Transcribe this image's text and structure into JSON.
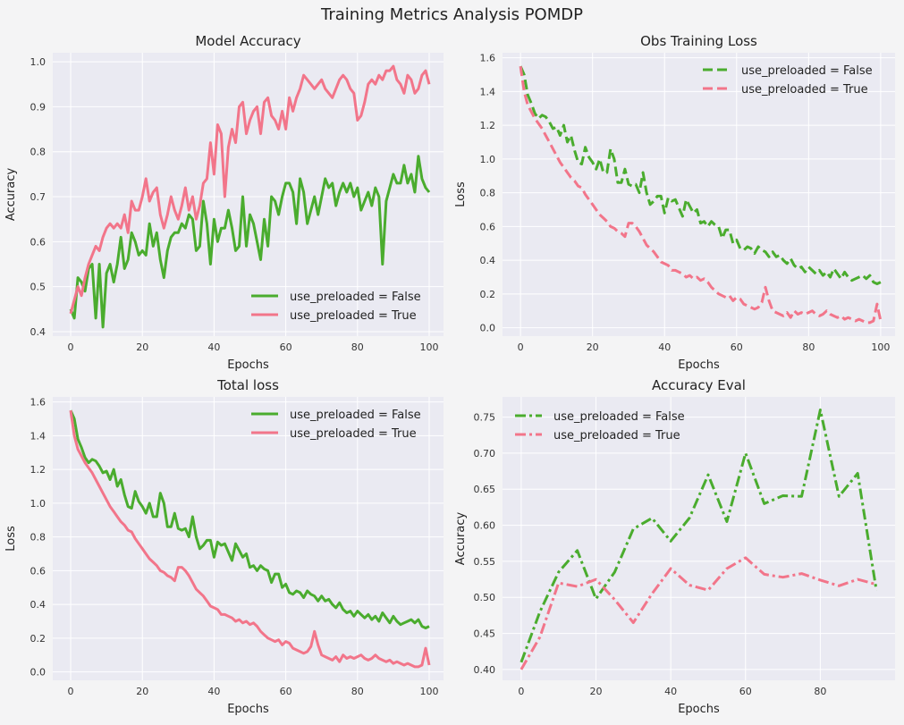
{
  "suptitle": "Training Metrics Analysis POMDP",
  "colors": {
    "false": "#4aac2e",
    "true": "#f2758a",
    "bg": "#eaeaf2",
    "grid": "#ffffff"
  },
  "chart_data": [
    {
      "id": "acc",
      "type": "line",
      "title": "Model Accuracy",
      "xlabel": "Epochs",
      "ylabel": "Accuracy",
      "xlim": [
        -5,
        104
      ],
      "ylim": [
        0.39,
        1.02
      ],
      "xticks": [
        0,
        20,
        40,
        60,
        80,
        100
      ],
      "yticks": [
        0.4,
        0.5,
        0.6,
        0.7,
        0.8,
        0.9,
        1.0
      ],
      "legend": "lower-right",
      "linestyle": "solid",
      "series": [
        {
          "name": "use_preloaded = False",
          "color": "#4aac2e",
          "y": [
            0.45,
            0.43,
            0.52,
            0.51,
            0.49,
            0.54,
            0.55,
            0.43,
            0.55,
            0.41,
            0.53,
            0.55,
            0.51,
            0.55,
            0.61,
            0.54,
            0.56,
            0.62,
            0.6,
            0.57,
            0.58,
            0.57,
            0.64,
            0.59,
            0.62,
            0.56,
            0.52,
            0.58,
            0.61,
            0.62,
            0.62,
            0.64,
            0.63,
            0.66,
            0.65,
            0.58,
            0.59,
            0.69,
            0.64,
            0.55,
            0.65,
            0.6,
            0.63,
            0.63,
            0.67,
            0.63,
            0.58,
            0.59,
            0.7,
            0.59,
            0.66,
            0.64,
            0.6,
            0.56,
            0.65,
            0.59,
            0.7,
            0.69,
            0.66,
            0.7,
            0.73,
            0.73,
            0.71,
            0.64,
            0.74,
            0.71,
            0.64,
            0.67,
            0.7,
            0.66,
            0.7,
            0.74,
            0.72,
            0.73,
            0.68,
            0.71,
            0.73,
            0.71,
            0.73,
            0.7,
            0.72,
            0.67,
            0.69,
            0.71,
            0.68,
            0.72,
            0.7,
            0.55,
            0.69,
            0.72,
            0.75,
            0.73,
            0.73,
            0.77,
            0.73,
            0.75,
            0.71,
            0.79,
            0.74,
            0.72,
            0.71
          ]
        },
        {
          "name": "use_preloaded = True",
          "color": "#f2758a",
          "y": [
            0.44,
            0.47,
            0.5,
            0.48,
            0.52,
            0.55,
            0.57,
            0.59,
            0.58,
            0.61,
            0.63,
            0.64,
            0.63,
            0.64,
            0.63,
            0.66,
            0.62,
            0.69,
            0.67,
            0.67,
            0.7,
            0.74,
            0.69,
            0.71,
            0.72,
            0.66,
            0.63,
            0.66,
            0.7,
            0.67,
            0.65,
            0.68,
            0.72,
            0.67,
            0.7,
            0.65,
            0.68,
            0.73,
            0.74,
            0.82,
            0.75,
            0.86,
            0.84,
            0.7,
            0.81,
            0.85,
            0.82,
            0.9,
            0.91,
            0.84,
            0.87,
            0.89,
            0.9,
            0.84,
            0.91,
            0.92,
            0.88,
            0.87,
            0.85,
            0.89,
            0.85,
            0.92,
            0.89,
            0.92,
            0.94,
            0.97,
            0.96,
            0.95,
            0.94,
            0.95,
            0.96,
            0.94,
            0.93,
            0.92,
            0.94,
            0.96,
            0.97,
            0.96,
            0.94,
            0.93,
            0.87,
            0.88,
            0.91,
            0.95,
            0.96,
            0.95,
            0.97,
            0.96,
            0.98,
            0.98,
            0.99,
            0.96,
            0.95,
            0.93,
            0.97,
            0.96,
            0.93,
            0.94,
            0.97,
            0.98,
            0.95
          ]
        }
      ]
    },
    {
      "id": "obs",
      "type": "line",
      "title": "Obs Training Loss",
      "xlabel": "Epochs",
      "ylabel": "Loss",
      "xlim": [
        -5,
        104
      ],
      "ylim": [
        -0.05,
        1.63
      ],
      "xticks": [
        0,
        20,
        40,
        60,
        80,
        100
      ],
      "yticks": [
        0.0,
        0.2,
        0.4,
        0.6,
        0.8,
        1.0,
        1.2,
        1.4,
        1.6
      ],
      "legend": "upper-right",
      "linestyle": "dashed",
      "series": [
        {
          "name": "use_preloaded = False",
          "color": "#4aac2e",
          "y": [
            1.55,
            1.5,
            1.38,
            1.33,
            1.27,
            1.24,
            1.26,
            1.25,
            1.22,
            1.18,
            1.19,
            1.14,
            1.2,
            1.1,
            1.14,
            1.05,
            0.98,
            0.97,
            1.07,
            1.01,
            0.98,
            0.94,
            1.0,
            0.92,
            0.92,
            1.06,
            1.0,
            0.86,
            0.86,
            0.94,
            0.85,
            0.84,
            0.85,
            0.8,
            0.92,
            0.8,
            0.73,
            0.75,
            0.78,
            0.78,
            0.68,
            0.77,
            0.75,
            0.76,
            0.71,
            0.66,
            0.76,
            0.72,
            0.68,
            0.7,
            0.62,
            0.63,
            0.6,
            0.63,
            0.61,
            0.6,
            0.53,
            0.58,
            0.58,
            0.5,
            0.52,
            0.47,
            0.46,
            0.48,
            0.47,
            0.44,
            0.48,
            0.46,
            0.45,
            0.42,
            0.45,
            0.42,
            0.43,
            0.4,
            0.38,
            0.41,
            0.37,
            0.35,
            0.36,
            0.33,
            0.36,
            0.34,
            0.32,
            0.34,
            0.31,
            0.33,
            0.3,
            0.35,
            0.32,
            0.29,
            0.33,
            0.3,
            0.28,
            0.29,
            0.3,
            0.31,
            0.29,
            0.31,
            0.27,
            0.26,
            0.27
          ]
        },
        {
          "name": "use_preloaded = True",
          "color": "#f2758a",
          "y": [
            1.55,
            1.4,
            1.32,
            1.28,
            1.24,
            1.21,
            1.18,
            1.14,
            1.1,
            1.06,
            1.02,
            0.98,
            0.95,
            0.92,
            0.89,
            0.87,
            0.84,
            0.83,
            0.79,
            0.76,
            0.73,
            0.7,
            0.67,
            0.65,
            0.63,
            0.6,
            0.59,
            0.57,
            0.56,
            0.54,
            0.62,
            0.62,
            0.6,
            0.57,
            0.53,
            0.49,
            0.47,
            0.45,
            0.42,
            0.39,
            0.38,
            0.37,
            0.34,
            0.34,
            0.33,
            0.32,
            0.3,
            0.31,
            0.29,
            0.3,
            0.28,
            0.29,
            0.27,
            0.24,
            0.22,
            0.2,
            0.19,
            0.18,
            0.19,
            0.16,
            0.18,
            0.17,
            0.14,
            0.13,
            0.12,
            0.11,
            0.12,
            0.15,
            0.24,
            0.16,
            0.1,
            0.09,
            0.08,
            0.07,
            0.09,
            0.06,
            0.1,
            0.08,
            0.09,
            0.08,
            0.09,
            0.1,
            0.08,
            0.07,
            0.08,
            0.1,
            0.08,
            0.07,
            0.06,
            0.07,
            0.05,
            0.06,
            0.05,
            0.04,
            0.05,
            0.04,
            0.03,
            0.03,
            0.04,
            0.14,
            0.04
          ]
        }
      ]
    },
    {
      "id": "total",
      "type": "line",
      "title": "Total loss",
      "xlabel": "Epochs",
      "ylabel": "Loss",
      "xlim": [
        -5,
        104
      ],
      "ylim": [
        -0.05,
        1.63
      ],
      "xticks": [
        0,
        20,
        40,
        60,
        80,
        100
      ],
      "yticks": [
        0.0,
        0.2,
        0.4,
        0.6,
        0.8,
        1.0,
        1.2,
        1.4,
        1.6
      ],
      "legend": "upper-right",
      "linestyle": "solid",
      "series": [
        {
          "name": "use_preloaded = False",
          "color": "#4aac2e",
          "y": [
            1.55,
            1.5,
            1.38,
            1.33,
            1.27,
            1.24,
            1.26,
            1.25,
            1.22,
            1.18,
            1.19,
            1.14,
            1.2,
            1.1,
            1.14,
            1.05,
            0.98,
            0.97,
            1.07,
            1.01,
            0.98,
            0.94,
            1.0,
            0.92,
            0.92,
            1.06,
            1.0,
            0.86,
            0.86,
            0.94,
            0.85,
            0.84,
            0.85,
            0.8,
            0.92,
            0.8,
            0.73,
            0.75,
            0.78,
            0.78,
            0.68,
            0.77,
            0.75,
            0.76,
            0.71,
            0.66,
            0.76,
            0.72,
            0.68,
            0.7,
            0.62,
            0.63,
            0.6,
            0.63,
            0.61,
            0.6,
            0.53,
            0.58,
            0.58,
            0.5,
            0.52,
            0.47,
            0.46,
            0.48,
            0.47,
            0.44,
            0.48,
            0.46,
            0.45,
            0.42,
            0.45,
            0.42,
            0.43,
            0.4,
            0.38,
            0.41,
            0.37,
            0.35,
            0.36,
            0.33,
            0.36,
            0.34,
            0.32,
            0.34,
            0.31,
            0.33,
            0.3,
            0.35,
            0.32,
            0.29,
            0.33,
            0.3,
            0.28,
            0.29,
            0.3,
            0.31,
            0.29,
            0.31,
            0.27,
            0.26,
            0.27
          ]
        },
        {
          "name": "use_preloaded = True",
          "color": "#f2758a",
          "y": [
            1.55,
            1.4,
            1.32,
            1.28,
            1.24,
            1.21,
            1.18,
            1.14,
            1.1,
            1.06,
            1.02,
            0.98,
            0.95,
            0.92,
            0.89,
            0.87,
            0.84,
            0.83,
            0.79,
            0.76,
            0.73,
            0.7,
            0.67,
            0.65,
            0.63,
            0.6,
            0.59,
            0.57,
            0.56,
            0.54,
            0.62,
            0.62,
            0.6,
            0.57,
            0.53,
            0.49,
            0.47,
            0.45,
            0.42,
            0.39,
            0.38,
            0.37,
            0.34,
            0.34,
            0.33,
            0.32,
            0.3,
            0.31,
            0.29,
            0.3,
            0.28,
            0.29,
            0.27,
            0.24,
            0.22,
            0.2,
            0.19,
            0.18,
            0.19,
            0.16,
            0.18,
            0.17,
            0.14,
            0.13,
            0.12,
            0.11,
            0.12,
            0.15,
            0.24,
            0.16,
            0.1,
            0.09,
            0.08,
            0.07,
            0.09,
            0.06,
            0.1,
            0.08,
            0.09,
            0.08,
            0.09,
            0.1,
            0.08,
            0.07,
            0.08,
            0.1,
            0.08,
            0.07,
            0.06,
            0.07,
            0.05,
            0.06,
            0.05,
            0.04,
            0.05,
            0.04,
            0.03,
            0.03,
            0.04,
            0.14,
            0.04
          ]
        }
      ]
    },
    {
      "id": "eval",
      "type": "line",
      "title": "Accuracy Eval",
      "xlabel": "Epochs",
      "ylabel": "Accuracy",
      "xlim": [
        -5,
        100
      ],
      "ylim": [
        0.385,
        0.778
      ],
      "xticks": [
        0,
        20,
        40,
        60,
        80
      ],
      "yticks": [
        0.4,
        0.45,
        0.5,
        0.55,
        0.6,
        0.65,
        0.7,
        0.75
      ],
      "tick_format": 2,
      "legend": "upper-left",
      "linestyle": "dashdot",
      "series": [
        {
          "name": "use_preloaded = False",
          "color": "#4aac2e",
          "x": [
            0,
            5,
            10,
            15,
            20,
            25,
            30,
            35,
            40,
            45,
            50,
            55,
            60,
            65,
            70,
            75,
            80,
            85,
            90,
            95
          ],
          "y": [
            0.41,
            0.48,
            0.535,
            0.565,
            0.498,
            0.535,
            0.595,
            0.61,
            0.578,
            0.61,
            0.67,
            0.605,
            0.7,
            0.63,
            0.641,
            0.64,
            0.76,
            0.64,
            0.672,
            0.51
          ]
        },
        {
          "name": "use_preloaded = True",
          "color": "#f2758a",
          "x": [
            0,
            5,
            10,
            15,
            20,
            25,
            30,
            35,
            40,
            45,
            50,
            55,
            60,
            65,
            70,
            75,
            80,
            85,
            90,
            95
          ],
          "y": [
            0.4,
            0.445,
            0.52,
            0.515,
            0.525,
            0.497,
            0.465,
            0.505,
            0.54,
            0.517,
            0.51,
            0.54,
            0.555,
            0.532,
            0.528,
            0.533,
            0.524,
            0.516,
            0.525,
            0.518
          ]
        }
      ]
    }
  ]
}
